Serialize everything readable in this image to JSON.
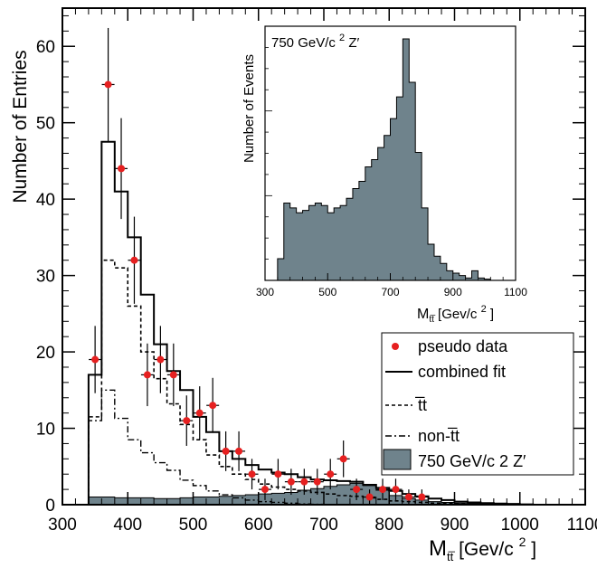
{
  "chart_data": [
    {
      "type": "histogram",
      "title": "",
      "xlabel": "M_{t̅t} [Gev/c 2 ]",
      "xlabel_main": "M",
      "xlabel_sub": "tt̅",
      "xlabel_unit": " [Gev/c ",
      "xlabel_sup": "2",
      "xlabel_close": " ]",
      "ylabel": "Number of Entries",
      "xlim": [
        300,
        1100
      ],
      "ylim": [
        0,
        65
      ],
      "xticks": [
        300,
        400,
        500,
        600,
        700,
        800,
        900,
        1000,
        1100
      ],
      "yticks": [
        0,
        10,
        20,
        30,
        40,
        50,
        60
      ],
      "bin_edges": [
        340,
        360,
        380,
        400,
        420,
        440,
        460,
        480,
        500,
        520,
        540,
        560,
        580,
        600,
        620,
        640,
        660,
        680,
        700,
        720,
        740,
        760,
        780,
        800,
        820,
        840,
        860,
        880,
        900,
        920,
        940,
        960,
        980,
        1000,
        1020
      ],
      "series": [
        {
          "name": "combined fit",
          "style": "solid",
          "values": [
            17,
            47.5,
            41,
            35,
            27.5,
            21,
            17.5,
            15,
            11.5,
            9.5,
            7,
            6,
            5.2,
            4.6,
            4.2,
            4,
            3.6,
            3.3,
            3.2,
            3.1,
            3,
            2.6,
            2.2,
            1.8,
            1.4,
            1.1,
            0.8,
            0.6,
            0.4,
            0.3,
            0.2,
            0.15,
            0.1,
            0.05
          ]
        },
        {
          "name": "t̅t",
          "style": "dashed",
          "values": [
            11.5,
            32,
            31,
            26,
            20,
            16.5,
            13.2,
            10.5,
            8.5,
            6.5,
            5,
            4,
            3.3,
            2.7,
            2.3,
            2,
            1.8,
            1.6,
            1.4,
            1.2,
            1.1,
            0.9,
            0.7,
            0.5,
            0.4,
            0.3,
            0.2,
            0.15,
            0.1,
            0.05,
            0,
            0,
            0,
            0
          ]
        },
        {
          "name": "non-t̅t",
          "style": "dashdot",
          "values": [
            11,
            15,
            11.3,
            8.5,
            6.8,
            5.5,
            4.5,
            3.2,
            2.5,
            1.8,
            1.3,
            0.9,
            0.6,
            0.4,
            0.3,
            0.2,
            0.1,
            0.05,
            0,
            0,
            0,
            0,
            0,
            0,
            0,
            0,
            0,
            0,
            0,
            0,
            0,
            0,
            0,
            0
          ]
        },
        {
          "name": "750 GeV/c 2 Z′",
          "style": "filled",
          "color": "#6f838c",
          "values": [
            1,
            1,
            0.9,
            0.9,
            0.9,
            0.8,
            0.8,
            0.9,
            1,
            1,
            1.1,
            1.2,
            1.3,
            1.4,
            1.5,
            1.6,
            1.9,
            2.1,
            2.4,
            2.6,
            2.8,
            2.5,
            1.9,
            1.2,
            0.8,
            0.6,
            0.4,
            0.3,
            0.2,
            0.15,
            0.1,
            0.05,
            0.05,
            0
          ]
        }
      ],
      "points": {
        "name": "pseudo data",
        "color": "#e62020",
        "x": [
          350,
          370,
          390,
          410,
          430,
          450,
          470,
          490,
          510,
          530,
          550,
          570,
          590,
          610,
          630,
          650,
          670,
          690,
          710,
          730,
          750,
          770,
          790,
          810,
          830,
          850
        ],
        "y": [
          19,
          55,
          44,
          32,
          17,
          19,
          17,
          11,
          12,
          13,
          7,
          7,
          4,
          2,
          4,
          3,
          3,
          3,
          4,
          6,
          2,
          1,
          2,
          2,
          1,
          1
        ],
        "err": [
          4.4,
          7.4,
          6.6,
          5.7,
          4.1,
          4.4,
          4.1,
          3.3,
          3.5,
          3.6,
          2.6,
          2.6,
          2,
          1.4,
          2,
          1.7,
          1.7,
          1.7,
          2,
          2.4,
          1.4,
          1,
          1.4,
          1.4,
          1,
          1
        ]
      },
      "legend_placement": "bottom-right"
    },
    {
      "type": "histogram",
      "panel": "inset",
      "title": "750 GeV/c 2 Z′",
      "title_main": "750 GeV/c ",
      "title_sup": "2",
      "title_end": " Z′",
      "xlabel": "M_{t̅t} [Gev/c 2 ]",
      "ylabel": "Number of Events",
      "xlim": [
        300,
        1100
      ],
      "xticks": [
        300,
        500,
        700,
        900,
        1100
      ],
      "ylim": [
        0,
        100
      ],
      "bin_edges": [
        340,
        360,
        380,
        400,
        420,
        440,
        460,
        480,
        500,
        520,
        540,
        560,
        580,
        600,
        620,
        640,
        660,
        680,
        700,
        720,
        740,
        760,
        780,
        800,
        820,
        840,
        860,
        880,
        900,
        920,
        940,
        960,
        980,
        1000,
        1020
      ],
      "series": [
        {
          "name": "750 GeV/c 2 Z′",
          "color": "#6f838c",
          "values": [
            9,
            32,
            30,
            28,
            29,
            31,
            32,
            31,
            28,
            30,
            31,
            34,
            38,
            41,
            47,
            50,
            55,
            60,
            67,
            76,
            100,
            82,
            53,
            30,
            15,
            10,
            7,
            4,
            3,
            2,
            1,
            4,
            1,
            0.5
          ]
        }
      ]
    }
  ]
}
